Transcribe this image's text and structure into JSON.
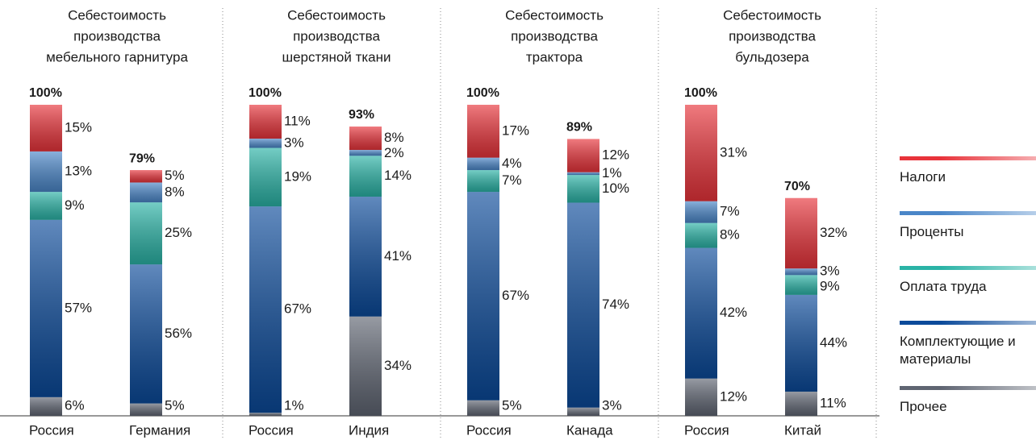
{
  "chart_data": {
    "type": "bar",
    "stacked": true,
    "ylim": [
      0,
      100
    ],
    "series": [
      {
        "name": "Прочее",
        "color": "#5f6572"
      },
      {
        "name": "Комплектующие и материалы",
        "color": "#0b4a9a"
      },
      {
        "name": "Оплата труда",
        "color": "#2ab3a6"
      },
      {
        "name": "Проценты",
        "color": "#4a86c8"
      },
      {
        "name": "Налоги",
        "color": "#e8333a"
      }
    ],
    "panels": [
      {
        "title": [
          "Себестоимость",
          "производства",
          "мебельного гарнитура"
        ],
        "categories": [
          "Россия",
          "Германия"
        ],
        "totals": [
          100,
          79
        ],
        "total_labels": [
          "100%",
          "79%"
        ],
        "values": [
          [
            6,
            57,
            9,
            13,
            15
          ],
          [
            5,
            56,
            25,
            8,
            5
          ]
        ],
        "value_labels": [
          [
            "6%",
            "57%",
            "9%",
            "13%",
            "15%"
          ],
          [
            "5%",
            "56%",
            "25%",
            "8%",
            "5%"
          ]
        ]
      },
      {
        "title": [
          "Себестоимость",
          "производства",
          "шерстяной ткани"
        ],
        "categories": [
          "Россия",
          "Индия"
        ],
        "totals": [
          100,
          93
        ],
        "total_labels": [
          "100%",
          "93%"
        ],
        "values": [
          [
            1,
            67,
            19,
            3,
            11
          ],
          [
            34,
            41,
            14,
            2,
            8
          ]
        ],
        "value_labels": [
          [
            "1%",
            "67%",
            "19%",
            "3%",
            "11%"
          ],
          [
            "34%",
            "41%",
            "14%",
            "2%",
            "8%"
          ]
        ]
      },
      {
        "title": [
          "Себестоимость",
          "производства",
          "трактора"
        ],
        "categories": [
          "Россия",
          "Канада"
        ],
        "totals": [
          100,
          89
        ],
        "total_labels": [
          "100%",
          "89%"
        ],
        "values": [
          [
            5,
            67,
            7,
            4,
            17
          ],
          [
            3,
            74,
            10,
            1,
            12
          ]
        ],
        "value_labels": [
          [
            "5%",
            "67%",
            "7%",
            "4%",
            "17%"
          ],
          [
            "3%",
            "74%",
            "10%",
            "1%",
            "12%"
          ]
        ]
      },
      {
        "title": [
          "Себестоимость",
          "производства",
          "бульдозера"
        ],
        "categories": [
          "Россия",
          "Китай"
        ],
        "totals": [
          100,
          70
        ],
        "total_labels": [
          "100%",
          "70%"
        ],
        "values": [
          [
            12,
            42,
            8,
            7,
            31
          ],
          [
            11,
            44,
            9,
            3,
            32
          ]
        ],
        "value_labels": [
          [
            "12%",
            "42%",
            "8%",
            "7%",
            "31%"
          ],
          [
            "11%",
            "44%",
            "9%",
            "3%",
            "32%"
          ]
        ]
      }
    ]
  }
}
